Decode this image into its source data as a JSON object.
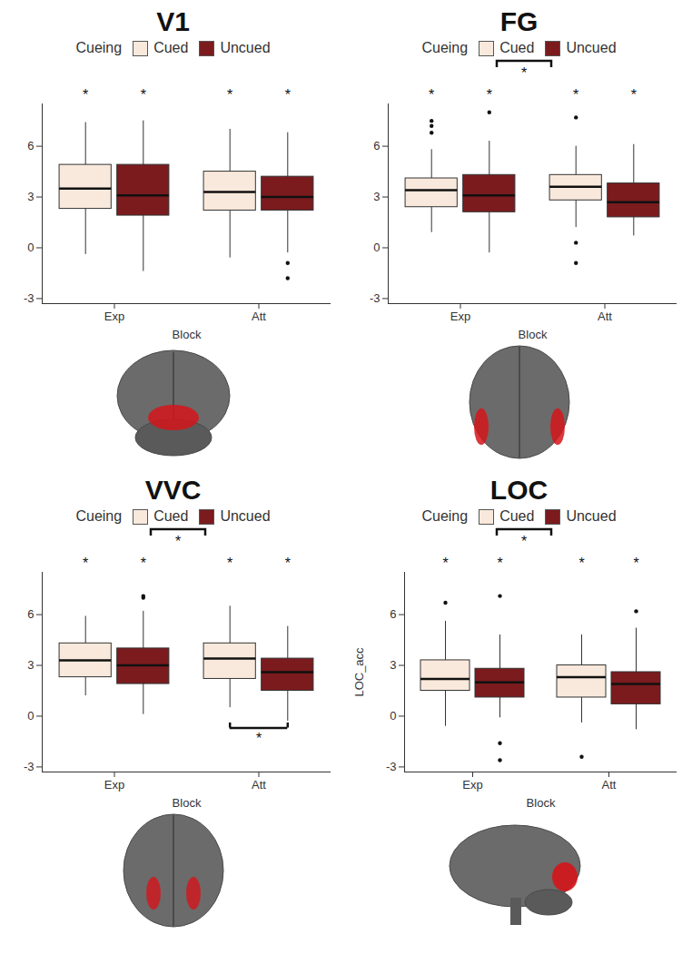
{
  "chart_data": [
    {
      "type": "boxplot",
      "title": "V1",
      "legend": "top",
      "legend_title": "Cueing",
      "x_label": "Block",
      "categories": [
        "Exp",
        "Att"
      ],
      "ylim": [
        -3.3,
        8.5
      ],
      "yticks": [
        -3,
        0,
        3,
        6
      ],
      "series": [
        {
          "name": "Cued",
          "color": "#f9e9dc",
          "boxes": [
            {
              "whisker_low": -0.4,
              "q1": 2.3,
              "median": 3.5,
              "q3": 4.9,
              "whisker_high": 7.4,
              "outliers": [],
              "label": "*"
            },
            {
              "whisker_low": -0.6,
              "q1": 2.2,
              "median": 3.3,
              "q3": 4.5,
              "whisker_high": 7.0,
              "outliers": [],
              "label": "*"
            }
          ]
        },
        {
          "name": "Uncued",
          "color": "#7b1b1e",
          "boxes": [
            {
              "whisker_low": -1.4,
              "q1": 1.9,
              "median": 3.1,
              "q3": 4.9,
              "whisker_high": 7.5,
              "outliers": [],
              "label": "*"
            },
            {
              "whisker_low": -0.3,
              "q1": 2.2,
              "median": 3.0,
              "q3": 4.2,
              "whisker_high": 6.8,
              "outliers": [
                -0.9,
                -1.8
              ],
              "label": "*"
            }
          ]
        }
      ],
      "brackets": []
    },
    {
      "type": "boxplot",
      "title": "FG",
      "legend": "top",
      "legend_title": "Cueing",
      "x_label": "Block",
      "categories": [
        "Exp",
        "Att"
      ],
      "ylim": [
        -3.3,
        8.5
      ],
      "yticks": [
        -3,
        0,
        3,
        6
      ],
      "series": [
        {
          "name": "Cued",
          "color": "#f9e9dc",
          "boxes": [
            {
              "whisker_low": 0.9,
              "q1": 2.4,
              "median": 3.4,
              "q3": 4.1,
              "whisker_high": 5.8,
              "outliers": [
                6.8,
                7.2,
                7.5
              ],
              "label": "*"
            },
            {
              "whisker_low": 1.2,
              "q1": 2.8,
              "median": 3.6,
              "q3": 4.3,
              "whisker_high": 6.0,
              "outliers": [
                7.7,
                0.3,
                -0.9
              ],
              "label": "*"
            }
          ]
        },
        {
          "name": "Uncued",
          "color": "#7b1b1e",
          "boxes": [
            {
              "whisker_low": -0.3,
              "q1": 2.1,
              "median": 3.1,
              "q3": 4.3,
              "whisker_high": 6.3,
              "outliers": [
                8.0
              ],
              "label": "*"
            },
            {
              "whisker_low": 0.7,
              "q1": 1.8,
              "median": 2.7,
              "q3": 3.8,
              "whisker_high": 6.1,
              "outliers": [],
              "label": "*"
            }
          ]
        }
      ],
      "brackets": [
        {
          "label": "*",
          "between": [
            "Cued",
            "Uncued"
          ]
        }
      ]
    },
    {
      "type": "boxplot",
      "title": "VVC",
      "legend": "top",
      "legend_title": "Cueing",
      "x_label": "Block",
      "categories": [
        "Exp",
        "Att"
      ],
      "ylim": [
        -3.3,
        8.5
      ],
      "yticks": [
        -3,
        0,
        3,
        6
      ],
      "series": [
        {
          "name": "Cued",
          "color": "#f9e9dc",
          "boxes": [
            {
              "whisker_low": 1.2,
              "q1": 2.3,
              "median": 3.3,
              "q3": 4.3,
              "whisker_high": 5.9,
              "outliers": [],
              "label": "*"
            },
            {
              "whisker_low": 0.5,
              "q1": 2.2,
              "median": 3.4,
              "q3": 4.3,
              "whisker_high": 6.5,
              "outliers": [],
              "label": "*"
            }
          ]
        },
        {
          "name": "Uncued",
          "color": "#7b1b1e",
          "boxes": [
            {
              "whisker_low": 0.1,
              "q1": 1.9,
              "median": 3.0,
              "q3": 4.0,
              "whisker_high": 6.2,
              "outliers": [
                7.0,
                7.1
              ],
              "label": "*"
            },
            {
              "whisker_low": -0.3,
              "q1": 1.5,
              "median": 2.6,
              "q3": 3.4,
              "whisker_high": 5.3,
              "outliers": [],
              "label": "*"
            }
          ]
        }
      ],
      "brackets": [
        {
          "label": "*",
          "between": [
            "Cued",
            "Uncued"
          ]
        },
        {
          "label": "*",
          "between": [
            "Cued",
            "Uncued"
          ],
          "category": "Att"
        }
      ]
    },
    {
      "type": "boxplot",
      "title": "LOC",
      "legend": "top",
      "legend_title": "Cueing",
      "x_label": "Block",
      "y_label": "LOC_acc",
      "categories": [
        "Exp",
        "Att"
      ],
      "ylim": [
        -3.3,
        8.5
      ],
      "yticks": [
        -3,
        0,
        3,
        6
      ],
      "series": [
        {
          "name": "Cued",
          "color": "#f9e9dc",
          "boxes": [
            {
              "whisker_low": -0.6,
              "q1": 1.5,
              "median": 2.2,
              "q3": 3.3,
              "whisker_high": 5.6,
              "outliers": [
                6.7
              ],
              "label": "*"
            },
            {
              "whisker_low": -0.4,
              "q1": 1.1,
              "median": 2.3,
              "q3": 3.0,
              "whisker_high": 4.8,
              "outliers": [
                -2.4
              ],
              "label": "*"
            }
          ]
        },
        {
          "name": "Uncued",
          "color": "#7b1b1e",
          "boxes": [
            {
              "whisker_low": -0.1,
              "q1": 1.1,
              "median": 2.0,
              "q3": 2.8,
              "whisker_high": 4.8,
              "outliers": [
                7.1,
                -1.6,
                -2.6
              ],
              "label": "*"
            },
            {
              "whisker_low": -0.8,
              "q1": 0.7,
              "median": 1.9,
              "q3": 2.6,
              "whisker_high": 5.2,
              "outliers": [
                6.2
              ],
              "label": "*"
            }
          ]
        }
      ],
      "brackets": [
        {
          "label": "*",
          "between": [
            "Cued",
            "Uncued"
          ]
        }
      ]
    }
  ]
}
